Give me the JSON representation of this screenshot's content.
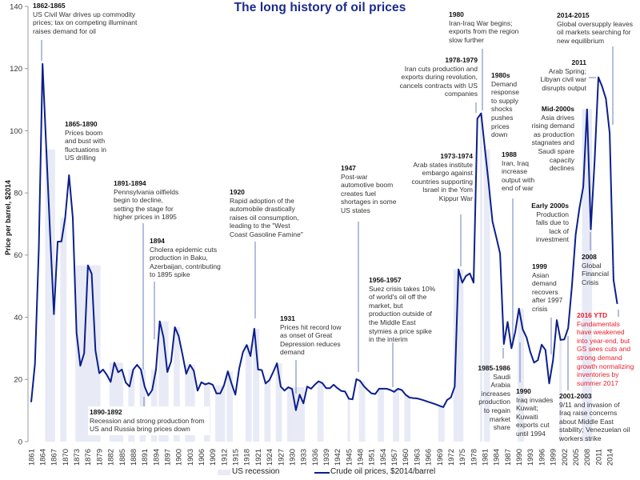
{
  "title": "The long history of oil prices",
  "legend": {
    "recession": "US recession",
    "price": "Crude oil prices, $2014/barrel"
  },
  "colors": {
    "price_line": "#0b1f8c",
    "recession": "#e8eaf6",
    "title": "#1b2a8e",
    "highlight": "#e8212b",
    "leader": "#8d9bcb"
  },
  "chart_data": {
    "type": "line",
    "title": "The long history of oil prices",
    "xlabel": "",
    "ylabel": "Price per barrel, $2014",
    "ylim": [
      0,
      140
    ],
    "yticks": [
      0,
      20,
      40,
      60,
      80,
      100,
      120,
      140
    ],
    "xlim": [
      1861,
      2016
    ],
    "xticks": [
      1861,
      1864,
      1867,
      1870,
      1873,
      1876,
      1879,
      1882,
      1885,
      1888,
      1891,
      1894,
      1897,
      1900,
      1903,
      1906,
      1909,
      1912,
      1915,
      1918,
      1921,
      1924,
      1927,
      1930,
      1933,
      1936,
      1939,
      1942,
      1945,
      1948,
      1951,
      1954,
      1957,
      1960,
      1963,
      1966,
      1969,
      1972,
      1975,
      1978,
      1981,
      1984,
      1987,
      1990,
      1993,
      1996,
      1999,
      2002,
      2005,
      2008,
      2011,
      2014
    ],
    "grid": false,
    "legend_position": "bottom",
    "series": [
      {
        "name": "Crude oil prices, $2014/barrel",
        "x": [
          1861,
          1862,
          1863,
          1864,
          1865,
          1866,
          1867,
          1868,
          1869,
          1870,
          1871,
          1872,
          1873,
          1874,
          1875,
          1876,
          1877,
          1878,
          1879,
          1880,
          1881,
          1882,
          1883,
          1884,
          1885,
          1886,
          1887,
          1888,
          1889,
          1890,
          1891,
          1892,
          1893,
          1894,
          1895,
          1896,
          1897,
          1898,
          1899,
          1900,
          1901,
          1902,
          1903,
          1904,
          1905,
          1906,
          1907,
          1908,
          1909,
          1910,
          1911,
          1912,
          1913,
          1914,
          1915,
          1916,
          1917,
          1918,
          1919,
          1920,
          1921,
          1922,
          1923,
          1924,
          1925,
          1926,
          1927,
          1928,
          1929,
          1930,
          1931,
          1932,
          1933,
          1934,
          1935,
          1936,
          1937,
          1938,
          1939,
          1940,
          1941,
          1942,
          1943,
          1944,
          1945,
          1946,
          1947,
          1948,
          1949,
          1950,
          1951,
          1952,
          1953,
          1954,
          1955,
          1956,
          1957,
          1958,
          1959,
          1960,
          1961,
          1962,
          1963,
          1964,
          1965,
          1966,
          1967,
          1968,
          1969,
          1970,
          1971,
          1972,
          1973,
          1974,
          1975,
          1976,
          1977,
          1978,
          1979,
          1980,
          1981,
          1982,
          1983,
          1984,
          1985,
          1986,
          1987,
          1988,
          1989,
          1990,
          1991,
          1992,
          1993,
          1994,
          1995,
          1996,
          1997,
          1998,
          1999,
          2000,
          2001,
          2002,
          2003,
          2004,
          2005,
          2006,
          2007,
          2008,
          2009,
          2010,
          2011,
          2012,
          2013,
          2014,
          2015,
          2016
        ],
        "values": [
          12.7,
          25,
          62,
          121.5,
          94,
          67,
          41,
          64.3,
          64.4,
          72,
          85.7,
          72,
          35,
          24.4,
          28.4,
          56.7,
          54,
          29.3,
          22,
          23.2,
          21.5,
          19.2,
          25.4,
          22.3,
          23.2,
          19,
          17.7,
          23.2,
          24.7,
          23.2,
          17.7,
          14.8,
          16.6,
          23.2,
          38.7,
          33.5,
          22.4,
          25.8,
          36.8,
          34,
          28,
          21.8,
          24.7,
          22.8,
          16.4,
          19.1,
          18.4,
          18.8,
          18.3,
          15.5,
          15.5,
          18.1,
          22.6,
          18.6,
          15.1,
          23.5,
          28.8,
          31.1,
          27.5,
          36.3,
          23.2,
          23,
          18.7,
          19.8,
          22.4,
          25.2,
          17.7,
          16.4,
          17.5,
          16.9,
          10.1,
          15.1,
          12.3,
          17.7,
          17,
          18.3,
          19.4,
          18.8,
          17.2,
          17.2,
          18.3,
          17.2,
          16.3,
          16.1,
          13.8,
          13.6,
          20.1,
          19.5,
          17.8,
          16.6,
          15.5,
          15.3,
          17,
          17,
          17,
          16.6,
          16,
          17,
          16.6,
          15.1,
          14.2,
          14,
          13.9,
          13.6,
          13.2,
          12.8,
          12.4,
          12,
          11.5,
          11.1,
          13.4,
          14.2,
          17.7,
          55.4,
          51.1,
          53.3,
          54.1,
          51.1,
          103.9,
          105.6,
          94,
          82.9,
          70.8,
          65.7,
          60.5,
          31.4,
          38.5,
          30,
          35.2,
          42.8,
          36.1,
          33.5,
          28.8,
          25.4,
          26.2,
          31.2,
          29.5,
          18.7,
          26.2,
          39.1,
          32.7,
          32.9,
          36.5,
          50,
          66.6,
          75.1,
          82,
          106.9,
          68.3,
          90,
          117.2,
          114.2,
          110.3,
          99.2,
          52,
          44.3
        ]
      }
    ],
    "recessions": {
      "name": "US recession",
      "periods": [
        [
          1865,
          1867
        ],
        [
          1869,
          1870
        ],
        [
          1873,
          1879
        ],
        [
          1882,
          1885
        ],
        [
          1887,
          1888
        ],
        [
          1890,
          1891
        ],
        [
          1893,
          1894
        ],
        [
          1895,
          1897
        ],
        [
          1899,
          1900
        ],
        [
          1902,
          1904
        ],
        [
          1907,
          1908
        ],
        [
          1910,
          1912
        ],
        [
          1913,
          1914
        ],
        [
          1918,
          1919
        ],
        [
          1920,
          1921
        ],
        [
          1923,
          1924
        ],
        [
          1926,
          1927
        ],
        [
          1929,
          1933
        ],
        [
          1937,
          1938
        ],
        [
          1945,
          1945
        ],
        [
          1948,
          1949
        ],
        [
          1953,
          1954
        ],
        [
          1957,
          1958
        ],
        [
          1960,
          1961
        ],
        [
          1969,
          1970
        ],
        [
          1973,
          1975
        ],
        [
          1980,
          1980
        ],
        [
          1981,
          1982
        ],
        [
          1990,
          1991
        ],
        [
          2001,
          2001
        ],
        [
          2007,
          2009
        ]
      ]
    },
    "annotations": [
      {
        "label": "1862-1865",
        "lines": [
          "US Civil War drives up commodity",
          "prices; tax on competing illuminant",
          "raises demand for oil"
        ],
        "highlight": false
      },
      {
        "label": "1865-1890",
        "lines": [
          "Prices boom",
          "and bust with",
          "fluctuations in",
          "US drilling"
        ],
        "highlight": false
      },
      {
        "label": "1891-1894",
        "lines": [
          "Pennsylvania oilfields",
          "begin to decline,",
          "setting the stage for",
          "higher prices in 1895"
        ],
        "highlight": false
      },
      {
        "label": "1894",
        "lines": [
          "Cholera epidemic cuts",
          "production in Baku,",
          "Azerbaijan, contributing",
          "to 1895 spike"
        ],
        "highlight": false
      },
      {
        "label": "1890-1892",
        "lines": [
          "Recession and strong production from",
          "US and Russia bring prices down"
        ],
        "highlight": false
      },
      {
        "label": "1920",
        "lines": [
          "Rapid adoption of the",
          "automobile drastically",
          "raises oil consumption,",
          "leading to the \"West",
          "Coast Gasoline Famine\""
        ],
        "highlight": false
      },
      {
        "label": "1931",
        "lines": [
          "Prices hit record low",
          "as onset of Great",
          "Depression reduces",
          "demand"
        ],
        "highlight": false
      },
      {
        "label": "1947",
        "lines": [
          "Post-war",
          "automotive boom",
          "creates fuel",
          "shortages in some",
          "US states"
        ],
        "highlight": false
      },
      {
        "label": "1956-1957",
        "lines": [
          "Suez crisis takes 10%",
          "of world's oil off the",
          "market, but",
          "production outside of",
          "the Middle East",
          "stymies a price spike",
          "in the interim"
        ],
        "highlight": false
      },
      {
        "label": "1973-1974",
        "lines": [
          "Arab states institute",
          "embargo against",
          "countries supporting",
          "Israel in the Yom",
          "Kippur War"
        ],
        "highlight": false
      },
      {
        "label": "1978-1979",
        "lines": [
          "Iran cuts production and",
          "exports during revolution,",
          "cancels contracts with US",
          "companies"
        ],
        "highlight": false
      },
      {
        "label": "1980",
        "lines": [
          "Iran-Iraq War begins;",
          "exports from the region",
          "slow further"
        ],
        "highlight": false
      },
      {
        "label": "1980s",
        "lines": [
          "Demand",
          "response",
          "to supply",
          "shocks",
          "pushes",
          "prices",
          "down"
        ],
        "highlight": false
      },
      {
        "label": "1988",
        "lines": [
          "Iran, Iraq",
          "increase",
          "output with",
          "end of war"
        ],
        "highlight": false
      },
      {
        "label": "1985-1986",
        "lines": [
          "Saudi",
          "Arabia",
          "increases",
          "production",
          "to regain",
          "market",
          "share"
        ],
        "highlight": false
      },
      {
        "label": "1990",
        "lines": [
          "Iraq invades",
          "Kuwait;",
          "Kuwaiti",
          "exports cut",
          "until 1994"
        ],
        "highlight": false
      },
      {
        "label": "1999",
        "lines": [
          "Asian",
          "demand",
          "recovers",
          "after 1997",
          "crisis"
        ],
        "highlight": false
      },
      {
        "label": "Early 2000s",
        "lines": [
          "Production",
          "falls due to",
          "lack of",
          "investment"
        ],
        "highlight": false
      },
      {
        "label": "Mid-2000s",
        "lines": [
          "Asia drives",
          "rising demand",
          "as production",
          "stagnates and",
          "Saudi spare",
          "capacity",
          "declines"
        ],
        "highlight": false
      },
      {
        "label": "2011",
        "lines": [
          "Arab Spring;",
          "Libyan civil war",
          "disrupts output"
        ],
        "highlight": false
      },
      {
        "label": "2014-2015",
        "lines": [
          "Global oversupply leaves",
          "oil markets searching for",
          "new equilibrium"
        ],
        "highlight": false
      },
      {
        "label": "2008",
        "lines": [
          "Global",
          "Financial",
          "Crisis"
        ],
        "highlight": false
      },
      {
        "label": "2016 YTD",
        "lines": [
          "Fundamentals",
          "have weakened",
          "into year-end, but",
          "GS sees cuts and",
          "strong demand",
          "growth normalizing",
          "inventories by",
          "summer 2017"
        ],
        "highlight": true
      },
      {
        "label": "2001-2003",
        "lines": [
          "9/11 and invasion of",
          "Iraq raise concerns",
          "about Middle East",
          "stability; Venezuelan oil",
          "workers strike"
        ],
        "highlight": false
      }
    ]
  }
}
